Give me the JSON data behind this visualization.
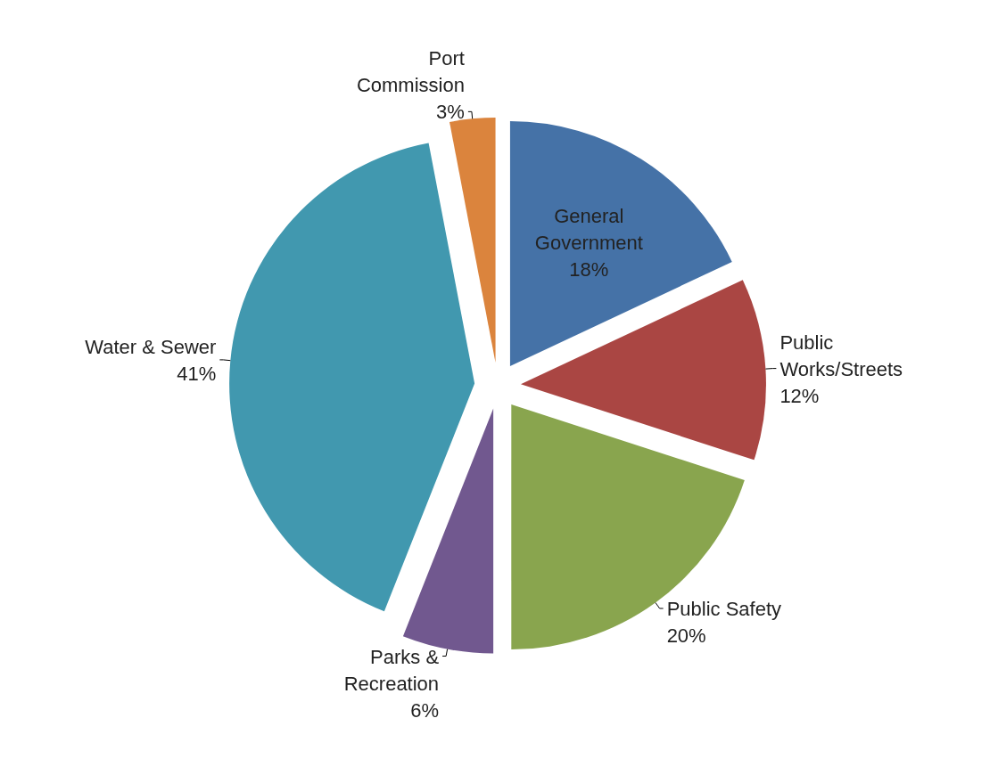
{
  "chart_data": {
    "type": "pie",
    "categories": [
      "General Government",
      "Public Works/Streets",
      "Public Safety",
      "Parks & Recreation",
      "Water & Sewer",
      "Port Commission"
    ],
    "values": [
      18,
      12,
      20,
      6,
      41,
      3
    ],
    "value_labels": [
      "18%",
      "12%",
      "20%",
      "6%",
      "41%",
      "3%"
    ],
    "colors": [
      "#4572a7",
      "#aa4643",
      "#89a54e",
      "#71588f",
      "#4198af",
      "#db843d"
    ]
  }
}
